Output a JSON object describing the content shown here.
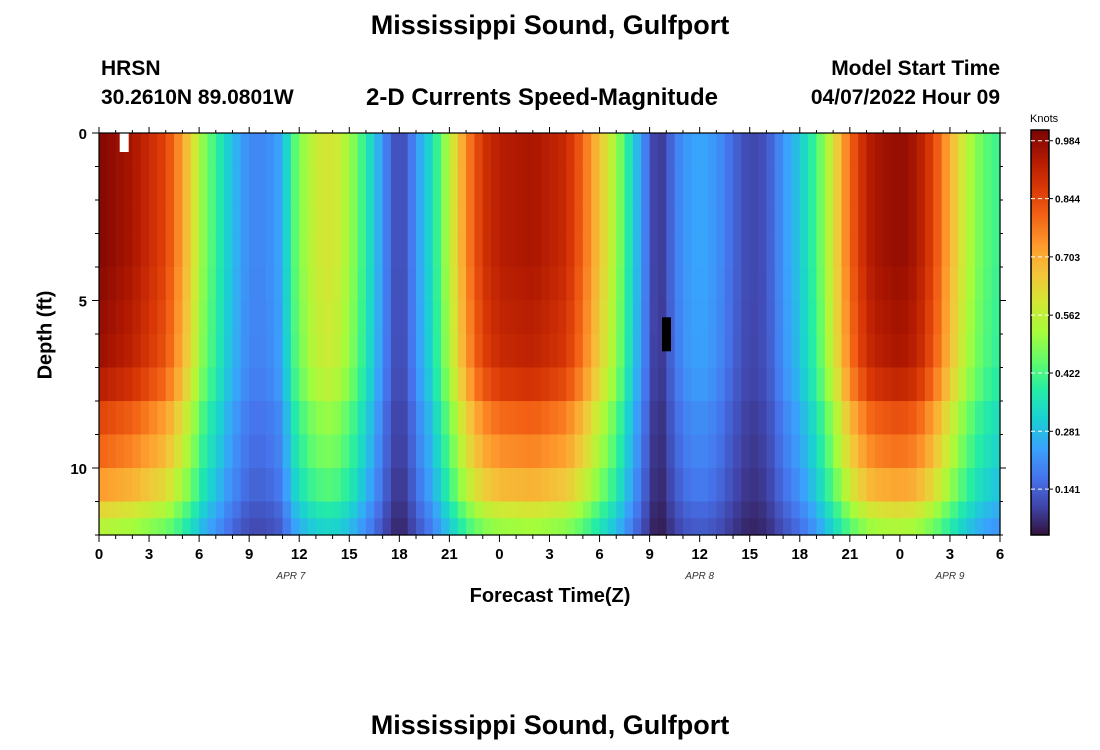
{
  "header": {
    "title_top": "Mississippi Sound, Gulfport",
    "station_id": "HRSN",
    "coords": "30.2610N  89.0801W",
    "subtitle": "2-D Currents Speed-Magnitude",
    "model_start_label": "Model Start Time",
    "model_start_value": "04/07/2022 Hour 09",
    "title_bottom": "Mississippi Sound, Gulfport"
  },
  "chart_data": {
    "type": "heatmap",
    "title": "2-D Currents Speed-Magnitude",
    "xlabel": "Forecast Time(Z)",
    "ylabel": "Depth (ft)",
    "x_range_hours": [
      0,
      54
    ],
    "x_start_note": "hours from 04/07/2022 00Z",
    "x_tick_labels": [
      "0",
      "3",
      "6",
      "9",
      "12",
      "15",
      "18",
      "21",
      "0",
      "3",
      "6",
      "9",
      "12",
      "15",
      "18",
      "21",
      "0",
      "3",
      "6"
    ],
    "date_labels": [
      {
        "label": "APR 7",
        "hour": 11.5
      },
      {
        "label": "APR 8",
        "hour": 36
      },
      {
        "label": "APR 9",
        "hour": 51
      }
    ],
    "y_range_ft": [
      0,
      12
    ],
    "y_inverted": true,
    "y_tick_labels": [
      "0",
      "5",
      "10"
    ],
    "y_tick_values": [
      0,
      5,
      10
    ],
    "depth_bins_ft": [
      0,
      1,
      2,
      3,
      4,
      5,
      6,
      7,
      8,
      9,
      10,
      11,
      11.5,
      12
    ],
    "colorbar": {
      "title": "Knots",
      "tick_values": [
        0.984,
        0.844,
        0.703,
        0.562,
        0.422,
        0.281,
        0.141
      ],
      "tick_labels": [
        "0.984",
        "0.844",
        "0.703",
        "0.562",
        "0.422",
        "0.281",
        "0.141"
      ],
      "min": 0.03,
      "max": 1.01,
      "colors": [
        "#30123b",
        "#4145ab",
        "#4675ed",
        "#39a2fc",
        "#1bcfd4",
        "#24eca6",
        "#61fc6c",
        "#a4fc3b",
        "#d1e834",
        "#f3c63a",
        "#fe9b2d",
        "#f36315",
        "#d93806",
        "#b11901",
        "#7a0403"
      ]
    },
    "surface_speed_profile": {
      "hours": [
        0,
        2,
        4,
        5,
        5.6,
        6.2,
        7,
        8,
        9,
        10,
        11,
        11.5,
        12,
        13,
        14,
        15,
        16,
        17,
        17.5,
        18,
        18.5,
        19,
        20,
        21,
        22,
        23,
        24,
        26,
        28,
        29,
        30,
        31,
        32,
        33,
        33.5,
        34,
        35,
        36,
        37,
        38,
        39,
        40,
        41,
        42,
        43,
        44,
        45,
        46,
        46.5,
        47,
        48,
        49,
        50,
        51,
        52,
        53,
        54
      ],
      "knots": [
        1.0,
        0.95,
        0.85,
        0.72,
        0.62,
        0.5,
        0.4,
        0.28,
        0.2,
        0.2,
        0.25,
        0.4,
        0.48,
        0.58,
        0.6,
        0.52,
        0.38,
        0.22,
        0.14,
        0.1,
        0.14,
        0.22,
        0.35,
        0.55,
        0.75,
        0.88,
        0.93,
        0.95,
        0.9,
        0.8,
        0.66,
        0.52,
        0.32,
        0.14,
        0.06,
        0.12,
        0.22,
        0.25,
        0.22,
        0.15,
        0.1,
        0.12,
        0.22,
        0.3,
        0.42,
        0.6,
        0.8,
        0.92,
        0.95,
        0.96,
        0.98,
        0.95,
        0.85,
        0.7,
        0.55,
        0.45,
        0.4
      ]
    },
    "depth_factor": [
      1.0,
      1.0,
      1.0,
      1.0,
      0.99,
      0.98,
      0.97,
      0.93,
      0.85,
      0.8,
      0.73,
      0.63,
      0.55,
      0.5
    ],
    "highlight_cells": [
      {
        "color": "#ffffff",
        "hour": 1,
        "depth_bin": 0,
        "note": "white marker"
      },
      {
        "color": "#000000",
        "hour": 33.5,
        "depth_bin": 5.5,
        "note": "black marker"
      }
    ]
  }
}
